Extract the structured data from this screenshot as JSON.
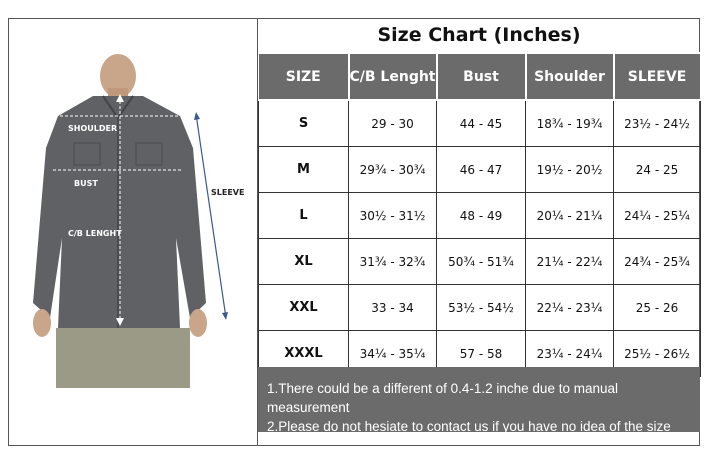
{
  "title": "Size Chart (Inches)",
  "diagram_labels": {
    "shoulder": "SHOULDER",
    "bust": "BUST",
    "cb_length": "C/B LENGHT",
    "sleeve": "SLEEVE"
  },
  "table": {
    "headers": [
      "SIZE",
      "C/B Lenght",
      "Bust",
      "Shoulder",
      "SLEEVE"
    ],
    "rows": [
      [
        "S",
        "29 - 30",
        "44 - 45",
        "18¾ - 19¾",
        "23½ - 24½"
      ],
      [
        "M",
        "29¾ - 30¾",
        "46 - 47",
        "19½ - 20½",
        "24 - 25"
      ],
      [
        "L",
        "30½ - 31½",
        "48 - 49",
        "20¼ - 21¼",
        "24¼ - 25¼"
      ],
      [
        "XL",
        "31¾ - 32¾",
        "50¾ - 51¾",
        "21¼ - 22¼",
        "24¾ - 25¾"
      ],
      [
        "XXL",
        "33 - 34",
        "53½ - 54½",
        "22¼ - 23¼",
        "25 - 26"
      ],
      [
        "XXXL",
        "34¼ - 35¼",
        "57 - 58",
        "23¼ - 24¼",
        "25½ - 26½"
      ]
    ]
  },
  "notes": [
    "1.There could be a different of 0.4-1.2 inche due to manual measurement",
    "2.Please do not hesiate to contact us if you have no idea of the size"
  ],
  "colors": {
    "header_bg": "#6b6b6b",
    "shirt": "#5f6165",
    "arrow": "#3a5a8c"
  }
}
